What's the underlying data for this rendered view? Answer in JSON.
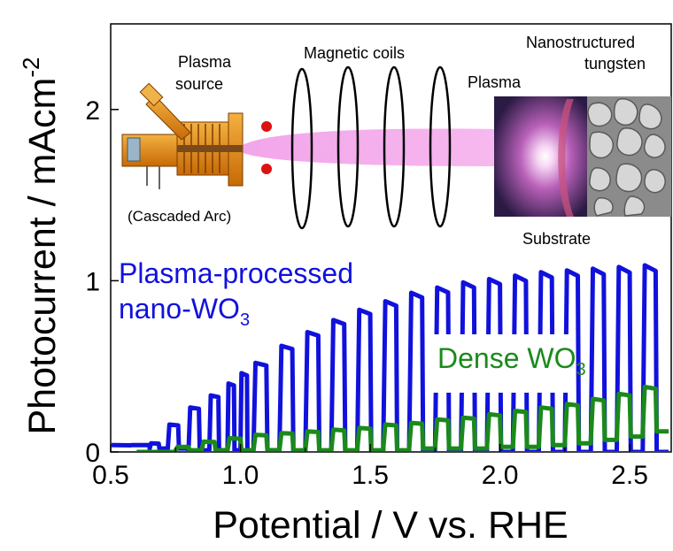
{
  "chart_data": {
    "type": "line",
    "xlabel": "Potential / V vs. RHE",
    "ylabel_main": "Photocurrent / mAcm",
    "ylabel_sup": "-2",
    "xlim": [
      0.5,
      2.66
    ],
    "ylim": [
      0,
      2.5
    ],
    "xticks": [
      "0.5",
      "1.0",
      "1.5",
      "2.0",
      "2.5"
    ],
    "yticks": [
      "0",
      "1",
      "2"
    ],
    "series": [
      {
        "name_main": "Plasma-processed",
        "name_line2": "nano-WO",
        "name_sub": "3",
        "color": "#1111dd",
        "x": [
          0.5,
          0.65,
          0.72,
          0.8,
          0.88,
          0.95,
          1.0,
          1.05,
          1.15,
          1.25,
          1.35,
          1.45,
          1.55,
          1.65,
          1.75,
          1.85,
          1.95,
          2.05,
          2.15,
          2.25,
          2.35,
          2.45,
          2.55,
          2.65
        ],
        "on": [
          0.04,
          0.05,
          0.16,
          0.26,
          0.33,
          0.4,
          0.46,
          0.52,
          0.62,
          0.7,
          0.77,
          0.83,
          0.88,
          0.93,
          0.96,
          0.99,
          1.01,
          1.03,
          1.05,
          1.06,
          1.07,
          1.08,
          1.09,
          1.1
        ],
        "off": [
          0.04,
          0.02,
          0.02,
          0.01,
          0.01,
          0.01,
          0.01,
          0.01,
          0.0,
          0.0,
          0.0,
          0.0,
          0.0,
          0.0,
          0.0,
          0.0,
          0.0,
          0.0,
          0.0,
          0.0,
          0.0,
          0.0,
          0.0,
          0.0
        ]
      },
      {
        "name_main": "Dense WO",
        "name_sub": "3",
        "color": "#1a8a1a",
        "x": [
          0.6,
          0.75,
          0.85,
          0.95,
          1.05,
          1.15,
          1.25,
          1.35,
          1.45,
          1.55,
          1.65,
          1.75,
          1.85,
          1.95,
          2.05,
          2.15,
          2.25,
          2.35,
          2.45,
          2.55,
          2.65
        ],
        "on": [
          0.0,
          0.03,
          0.06,
          0.08,
          0.1,
          0.11,
          0.12,
          0.13,
          0.14,
          0.16,
          0.17,
          0.19,
          0.2,
          0.22,
          0.24,
          0.26,
          0.28,
          0.31,
          0.34,
          0.38,
          0.42
        ],
        "off": [
          0.0,
          0.01,
          0.01,
          0.01,
          0.01,
          0.01,
          0.01,
          0.01,
          0.01,
          0.01,
          0.02,
          0.02,
          0.02,
          0.03,
          0.03,
          0.04,
          0.05,
          0.07,
          0.09,
          0.12,
          0.16
        ]
      }
    ],
    "grid": false
  },
  "inset": {
    "plasma_source_line1": "Plasma",
    "plasma_source_line2": "source",
    "cascaded_arc": "(Cascaded Arc)",
    "magnetic_coils": "Magnetic coils",
    "plasma": "Plasma",
    "nano_line1": "Nanostructured",
    "nano_line2": "tungsten",
    "substrate": "Substrate"
  },
  "colors": {
    "plasma_beam": "#f4a0e8",
    "apparatus": "#e38a12",
    "coil": "#000000",
    "red_dot": "#dd1111"
  }
}
